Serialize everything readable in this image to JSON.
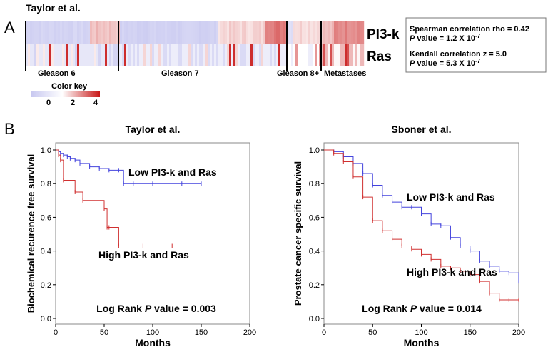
{
  "panel_a": {
    "letter": "A",
    "study": "Taylor et al.",
    "rows": [
      "PI3-k",
      "Ras"
    ],
    "groups": [
      "Gleason 6",
      "Gleason 7",
      "Gleason 8+",
      "Metastases"
    ],
    "stats": {
      "spearman_label": "Spearman correlation rho = 0.42",
      "spearman_p_word": "P",
      "spearman_p_text": " value = 1.2 X 10",
      "spearman_p_exp": "-7",
      "kendall_label": "Kendall correlation z = 5.0",
      "kendall_p_word": "P",
      "kendall_p_text": " value = 5.3 X 10",
      "kendall_p_exp": "-7"
    },
    "color_key": {
      "title": "Color key",
      "ticks": [
        "0",
        "2",
        "4"
      ],
      "colors": [
        "#c8c8f0",
        "#ffffff",
        "#c81818"
      ]
    }
  },
  "panel_b": {
    "letter": "B",
    "chart_data": [
      {
        "type": "line",
        "title": "Taylor et al.",
        "xlabel": "Months",
        "ylabel": "Biochemical recurence free survival",
        "xlim": [
          0,
          200
        ],
        "ylim": [
          0,
          1.0
        ],
        "xticks": [
          "0",
          "50",
          "100",
          "150",
          "200"
        ],
        "yticks": [
          "0.0",
          "0.2",
          "0.4",
          "0.6",
          "0.8",
          "1.0"
        ],
        "annotation_prefix": "Log Rank ",
        "annotation_p": "P",
        "annotation_suffix": " value = 0.003",
        "series": [
          {
            "name": "Low PI3-k and Ras",
            "color": "#4444dd",
            "x": [
              0,
              3,
              5,
              8,
              12,
              15,
              20,
              25,
              35,
              45,
              55,
              65,
              70,
              80,
              100,
              130,
              150
            ],
            "y": [
              1.0,
              0.99,
              0.98,
              0.97,
              0.96,
              0.95,
              0.94,
              0.92,
              0.9,
              0.89,
              0.88,
              0.88,
              0.8,
              0.8,
              0.8,
              0.8,
              0.8
            ]
          },
          {
            "name": "High PI3-k and Ras",
            "color": "#d03030",
            "x": [
              0,
              3,
              5,
              8,
              20,
              28,
              50,
              53,
              55,
              65,
              90,
              120
            ],
            "y": [
              1.0,
              0.97,
              0.94,
              0.82,
              0.75,
              0.7,
              0.65,
              0.54,
              0.54,
              0.43,
              0.43,
              0.43
            ]
          }
        ]
      },
      {
        "type": "line",
        "title": "Sboner et al.",
        "xlabel": "Months",
        "ylabel": "Prostate cancer specific survival",
        "xlim": [
          0,
          200
        ],
        "ylim": [
          0,
          1.0
        ],
        "xticks": [
          "0",
          "50",
          "100",
          "150",
          "200"
        ],
        "yticks": [
          "0.0",
          "0.2",
          "0.4",
          "0.6",
          "0.8",
          "1.0"
        ],
        "annotation_prefix": "Log Rank ",
        "annotation_p": "P",
        "annotation_suffix": " value = 0.014",
        "series": [
          {
            "name": "Low PI3-k and Ras",
            "color": "#4444dd",
            "x": [
              0,
              10,
              20,
              30,
              40,
              50,
              60,
              70,
              80,
              90,
              100,
              110,
              120,
              130,
              140,
              150,
              160,
              170,
              180,
              190,
              200
            ],
            "y": [
              1.0,
              0.99,
              0.96,
              0.92,
              0.86,
              0.79,
              0.73,
              0.69,
              0.66,
              0.66,
              0.62,
              0.56,
              0.55,
              0.48,
              0.43,
              0.4,
              0.34,
              0.31,
              0.28,
              0.27,
              0.22
            ]
          },
          {
            "name": "High PI3-k and Ras",
            "color": "#d03030",
            "x": [
              0,
              10,
              20,
              30,
              40,
              50,
              60,
              70,
              80,
              90,
              100,
              110,
              120,
              130,
              140,
              150,
              160,
              170,
              180,
              190,
              200
            ],
            "y": [
              1.0,
              0.98,
              0.93,
              0.84,
              0.72,
              0.58,
              0.52,
              0.47,
              0.43,
              0.41,
              0.38,
              0.35,
              0.31,
              0.3,
              0.28,
              0.26,
              0.22,
              0.15,
              0.11,
              0.11,
              0.11
            ]
          }
        ]
      }
    ]
  }
}
